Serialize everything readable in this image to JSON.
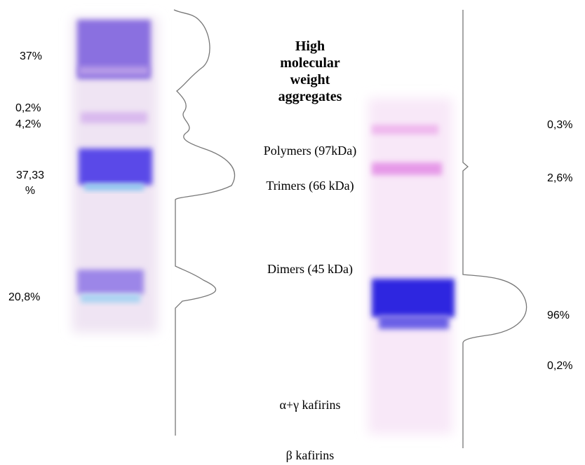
{
  "left_lane": {
    "labels": [
      "37%",
      "0,2%",
      "4,2%",
      "37,33 %",
      "20,8%"
    ]
  },
  "center": {
    "heading": "High molecular weight aggregates",
    "labels": [
      "Polymers (97kDa)",
      "Trimers (66 kDa)",
      "Dimers (45 kDa)",
      "α+γ kafirins",
      "β kafirins"
    ]
  },
  "right_lane": {
    "labels": [
      "0,3%",
      "2,6%",
      "96%",
      "0,2%"
    ]
  }
}
